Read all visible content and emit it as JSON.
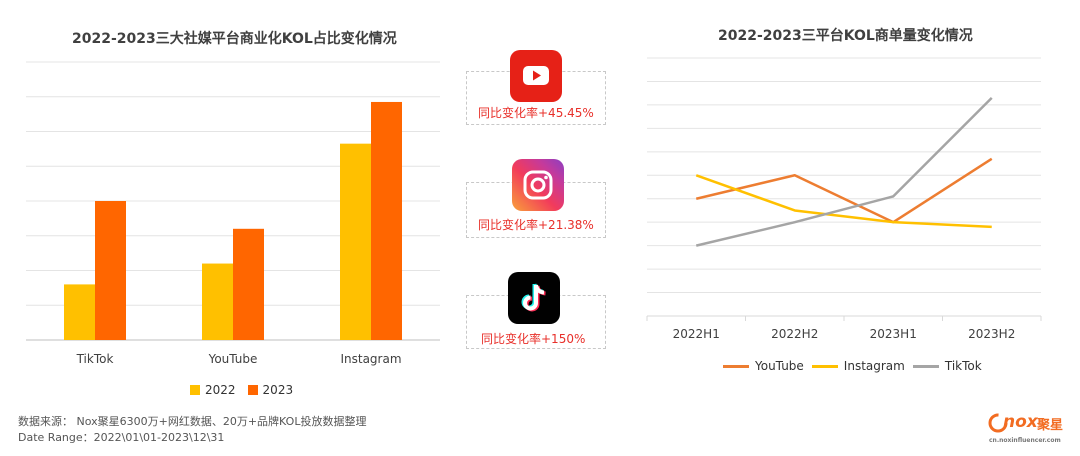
{
  "left_title": "2022-2023三大社媒平台商业化KOL占比变化情况",
  "right_title": "2022-2023三平台KOL商单量变化情况",
  "cards": [
    {
      "platform": "YouTube",
      "icon": "youtube-icon",
      "rate": "同比变化率+45.45%"
    },
    {
      "platform": "Instagram",
      "icon": "instagram-icon",
      "rate": "同比变化率+21.38%"
    },
    {
      "platform": "TikTok",
      "icon": "tiktok-icon",
      "rate": "同比变化率+150%"
    }
  ],
  "source": {
    "line1": "数据来源： Nox聚星6300万+网红数据、20万+品牌KOL投放数据整理",
    "line2": "Date Range：2022\\01\\01-2023\\12\\31"
  },
  "logo": {
    "brand": "nox",
    "brand_cn": "聚星",
    "url": "cn.noxinfluencer.com"
  },
  "colors": {
    "c2022": "#FFC000",
    "c2023": "#FF6600",
    "youtube": "#ED7D31",
    "instagram": "#FFC000",
    "tiktok": "#A5A5A5"
  },
  "chart_data": [
    {
      "type": "bar",
      "title": "2022-2023三大社媒平台商业化KOL占比变化情况",
      "categories": [
        "TikTok",
        "YouTube",
        "Instagram"
      ],
      "series": [
        {
          "name": "2022",
          "values": [
            1.6,
            2.2,
            5.65
          ]
        },
        {
          "name": "2023",
          "values": [
            4.0,
            3.2,
            6.85
          ]
        }
      ],
      "ylim": [
        0,
        8
      ],
      "grid": true,
      "legend": "bottom"
    },
    {
      "type": "line",
      "title": "2022-2023三平台KOL商单量变化情况",
      "categories": [
        "2022H1",
        "2022H2",
        "2023H1",
        "2023H2"
      ],
      "series": [
        {
          "name": "YouTube",
          "values": [
            5.0,
            6.0,
            4.0,
            6.7
          ]
        },
        {
          "name": "Instagram",
          "values": [
            6.0,
            4.5,
            4.0,
            3.8
          ]
        },
        {
          "name": "TikTok",
          "values": [
            3.0,
            4.0,
            5.1,
            9.3
          ]
        }
      ],
      "ylim": [
        0,
        11
      ],
      "grid": true,
      "legend": "bottom"
    }
  ]
}
